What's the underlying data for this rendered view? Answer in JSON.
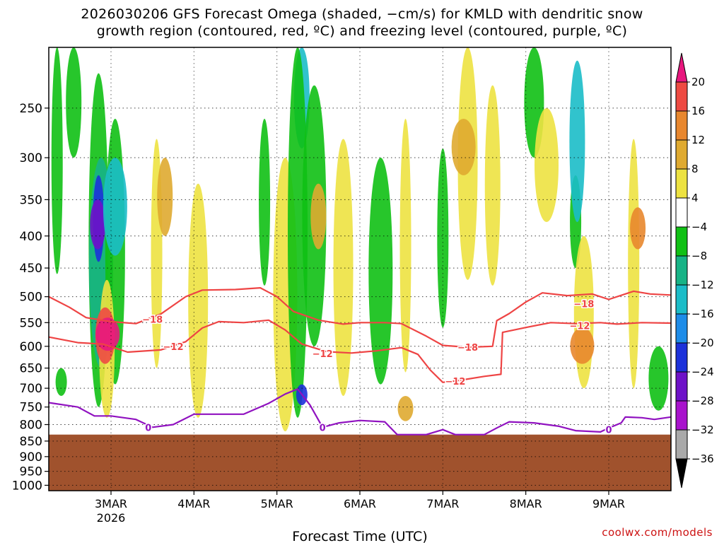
{
  "page": {
    "title_line1": "2026030206 GFS Forecast Omega (shaded, −cm/s) for KMLD with dendritic snow",
    "title_line2": "growth region (contoured, red, ºC) and freezing level (contoured, purple, ºC)",
    "credit": "coolwx.com/models"
  },
  "chart_data": {
    "type": "heatmap",
    "title": "2026030206 GFS Forecast Omega (shaded, −cm/s) for KMLD with dendritic snow growth region (contoured, red, ºC) and freezing level (contoured, purple, ºC)",
    "xlabel": "Forecast Time (UTC)",
    "ylabel": "",
    "x_range_days": [
      2.25,
      9.75
    ],
    "x_ticks": [
      {
        "label": "3MAR",
        "sub": "2026",
        "day": 3
      },
      {
        "label": "4MAR",
        "sub": "",
        "day": 4
      },
      {
        "label": "5MAR",
        "sub": "",
        "day": 5
      },
      {
        "label": "6MAR",
        "sub": "",
        "day": 6
      },
      {
        "label": "7MAR",
        "sub": "",
        "day": 7
      },
      {
        "label": "8MAR",
        "sub": "",
        "day": 8
      },
      {
        "label": "9MAR",
        "sub": "",
        "day": 9
      }
    ],
    "y_axis": {
      "scale": "log-pressure",
      "range_hpa": [
        200,
        1020
      ],
      "inverted": true,
      "ticks": [
        250,
        300,
        350,
        400,
        450,
        500,
        550,
        600,
        650,
        700,
        750,
        800,
        850,
        900,
        950,
        1000
      ]
    },
    "ground_level_hpa": 830,
    "ground_color": "#a0522d",
    "colorbar": {
      "bins": [
        {
          "lo": 20,
          "hi": 24,
          "color": "#e8177e"
        },
        {
          "lo": 16,
          "hi": 20,
          "color": "#ee4a42"
        },
        {
          "lo": 12,
          "hi": 16,
          "color": "#e8872e"
        },
        {
          "lo": 8,
          "hi": 12,
          "color": "#dfaa30"
        },
        {
          "lo": 4,
          "hi": 8,
          "color": "#ede241"
        },
        {
          "lo": -4,
          "hi": 4,
          "color": "#ffffff"
        },
        {
          "lo": -8,
          "hi": -4,
          "color": "#10c014"
        },
        {
          "lo": -12,
          "hi": -8,
          "color": "#17b386"
        },
        {
          "lo": -16,
          "hi": -12,
          "color": "#1bbcc8"
        },
        {
          "lo": -20,
          "hi": -16,
          "color": "#1d8ce8"
        },
        {
          "lo": -24,
          "hi": -20,
          "color": "#1c31da"
        },
        {
          "lo": -28,
          "hi": -24,
          "color": "#6e12c8"
        },
        {
          "lo": -32,
          "hi": -28,
          "color": "#a812cc"
        },
        {
          "lo": -36,
          "hi": -32,
          "color": "#a9a9a9"
        },
        {
          "lo": -40,
          "hi": -36,
          "color": "#000000"
        }
      ],
      "tick_labels": [
        "20",
        "16",
        "12",
        "8",
        "4",
        "−4",
        "−8",
        "−12",
        "−16",
        "−20",
        "−24",
        "−28",
        "−32",
        "−36"
      ]
    },
    "contours": [
      {
        "name": "-18C isotherm",
        "label": "−18",
        "color": "#ee4444",
        "label_at": [
          [
            3.5,
            543
          ],
          [
            7.3,
            602
          ],
          [
            8.7,
            513
          ]
        ],
        "points": [
          [
            2.25,
            500
          ],
          [
            2.5,
            520
          ],
          [
            2.7,
            540
          ],
          [
            3.0,
            548
          ],
          [
            3.3,
            552
          ],
          [
            3.6,
            533
          ],
          [
            3.9,
            500
          ],
          [
            4.1,
            488
          ],
          [
            4.5,
            487
          ],
          [
            4.8,
            484
          ],
          [
            5.0,
            500
          ],
          [
            5.2,
            528
          ],
          [
            5.5,
            545
          ],
          [
            5.8,
            553
          ],
          [
            6.0,
            550
          ],
          [
            6.3,
            550
          ],
          [
            6.5,
            552
          ],
          [
            6.8,
            578
          ],
          [
            7.0,
            598
          ],
          [
            7.3,
            602
          ],
          [
            7.6,
            600
          ],
          [
            7.65,
            546
          ],
          [
            7.8,
            532
          ],
          [
            8.0,
            510
          ],
          [
            8.2,
            493
          ],
          [
            8.5,
            498
          ],
          [
            8.8,
            495
          ],
          [
            9.0,
            505
          ],
          [
            9.3,
            490
          ],
          [
            9.5,
            495
          ],
          [
            9.75,
            497
          ]
        ]
      },
      {
        "name": "-12C isotherm",
        "label": "−12",
        "color": "#ee4444",
        "label_at": [
          [
            3.75,
            600
          ],
          [
            5.55,
            616
          ],
          [
            7.15,
            682
          ],
          [
            8.65,
            556
          ]
        ],
        "points": [
          [
            2.25,
            580
          ],
          [
            2.6,
            592
          ],
          [
            2.9,
            595
          ],
          [
            3.2,
            613
          ],
          [
            3.6,
            608
          ],
          [
            3.9,
            590
          ],
          [
            4.1,
            561
          ],
          [
            4.3,
            548
          ],
          [
            4.6,
            550
          ],
          [
            4.9,
            545
          ],
          [
            5.1,
            565
          ],
          [
            5.3,
            595
          ],
          [
            5.6,
            612
          ],
          [
            5.9,
            615
          ],
          [
            6.2,
            610
          ],
          [
            6.5,
            603
          ],
          [
            6.7,
            618
          ],
          [
            6.85,
            655
          ],
          [
            7.0,
            685
          ],
          [
            7.2,
            680
          ],
          [
            7.5,
            670
          ],
          [
            7.7,
            665
          ],
          [
            7.72,
            570
          ],
          [
            8.0,
            560
          ],
          [
            8.3,
            550
          ],
          [
            8.6,
            552
          ],
          [
            8.9,
            550
          ],
          [
            9.1,
            553
          ],
          [
            9.4,
            550
          ],
          [
            9.75,
            551
          ]
        ]
      },
      {
        "name": "freezing level (0C)",
        "label": "0",
        "color": "#9012c0",
        "label_at": [
          [
            3.45,
            808
          ],
          [
            5.55,
            808
          ],
          [
            9.0,
            815
          ]
        ],
        "points": [
          [
            2.25,
            738
          ],
          [
            2.6,
            750
          ],
          [
            2.8,
            775
          ],
          [
            3.0,
            775
          ],
          [
            3.3,
            785
          ],
          [
            3.5,
            808
          ],
          [
            3.75,
            800
          ],
          [
            4.0,
            770
          ],
          [
            4.3,
            770
          ],
          [
            4.6,
            770
          ],
          [
            4.9,
            740
          ],
          [
            5.1,
            715
          ],
          [
            5.25,
            702
          ],
          [
            5.4,
            745
          ],
          [
            5.55,
            808
          ],
          [
            5.75,
            795
          ],
          [
            6.0,
            788
          ],
          [
            6.3,
            792
          ],
          [
            6.45,
            830
          ],
          [
            6.8,
            830
          ],
          [
            7.0,
            815
          ],
          [
            7.15,
            830
          ],
          [
            7.5,
            830
          ],
          [
            7.65,
            810
          ],
          [
            7.8,
            792
          ],
          [
            8.1,
            795
          ],
          [
            8.4,
            805
          ],
          [
            8.6,
            818
          ],
          [
            8.9,
            822
          ],
          [
            9.0,
            810
          ],
          [
            9.15,
            795
          ],
          [
            9.2,
            778
          ],
          [
            9.4,
            780
          ],
          [
            9.55,
            785
          ],
          [
            9.75,
            778
          ]
        ]
      }
    ],
    "omega_features": [
      {
        "hex": "#10c014",
        "day": 2.35,
        "p": [
          200,
          460
        ]
      },
      {
        "hex": "#10c014",
        "day": 2.55,
        "p": [
          200,
          300
        ]
      },
      {
        "hex": "#10c014",
        "day": 2.85,
        "p": [
          220,
          750
        ]
      },
      {
        "hex": "#17b386",
        "day": 2.88,
        "p": [
          300,
          650
        ]
      },
      {
        "hex": "#1c31da",
        "day": 2.85,
        "p": [
          320,
          440
        ]
      },
      {
        "hex": "#6e12c8",
        "day": 2.84,
        "p": [
          350,
          420
        ]
      },
      {
        "hex": "#10c014",
        "day": 3.05,
        "p": [
          260,
          690
        ]
      },
      {
        "hex": "#1bbcc8",
        "day": 3.05,
        "p": [
          300,
          430
        ]
      },
      {
        "hex": "#10c014",
        "day": 2.4,
        "p": [
          650,
          720
        ]
      },
      {
        "hex": "#ede241",
        "day": 2.95,
        "p": [
          470,
          780
        ]
      },
      {
        "hex": "#ee4a42",
        "day": 2.93,
        "p": [
          520,
          640
        ]
      },
      {
        "hex": "#e8177e",
        "day": 2.96,
        "p": [
          540,
          610
        ]
      },
      {
        "hex": "#ede241",
        "day": 3.55,
        "p": [
          280,
          650
        ]
      },
      {
        "hex": "#dfaa30",
        "day": 3.65,
        "p": [
          300,
          400
        ]
      },
      {
        "hex": "#ede241",
        "day": 4.05,
        "p": [
          330,
          780
        ]
      },
      {
        "hex": "#ede241",
        "day": 5.1,
        "p": [
          300,
          820
        ]
      },
      {
        "hex": "#10c014",
        "day": 4.85,
        "p": [
          260,
          480
        ]
      },
      {
        "hex": "#1bbcc8",
        "day": 5.3,
        "p": [
          200,
          290
        ]
      },
      {
        "hex": "#10c014",
        "day": 5.25,
        "p": [
          200,
          780
        ]
      },
      {
        "hex": "#10c014",
        "day": 5.45,
        "p": [
          230,
          600
        ]
      },
      {
        "hex": "#1c31da",
        "day": 5.3,
        "p": [
          690,
          745
        ]
      },
      {
        "hex": "#dfaa30",
        "day": 5.5,
        "p": [
          330,
          420
        ]
      },
      {
        "hex": "#ede241",
        "day": 5.8,
        "p": [
          280,
          720
        ]
      },
      {
        "hex": "#10c014",
        "day": 6.25,
        "p": [
          300,
          690
        ]
      },
      {
        "hex": "#ede241",
        "day": 6.55,
        "p": [
          260,
          660
        ]
      },
      {
        "hex": "#dfaa30",
        "day": 6.55,
        "p": [
          720,
          790
        ]
      },
      {
        "hex": "#ede241",
        "day": 7.3,
        "p": [
          200,
          470
        ]
      },
      {
        "hex": "#dfaa30",
        "day": 7.25,
        "p": [
          260,
          320
        ]
      },
      {
        "hex": "#10c014",
        "day": 7.0,
        "p": [
          290,
          560
        ]
      },
      {
        "hex": "#ede241",
        "day": 7.6,
        "p": [
          230,
          480
        ]
      },
      {
        "hex": "#10c014",
        "day": 8.1,
        "p": [
          200,
          300
        ]
      },
      {
        "hex": "#ede241",
        "day": 8.25,
        "p": [
          250,
          380
        ]
      },
      {
        "hex": "#10c014",
        "day": 8.6,
        "p": [
          320,
          450
        ]
      },
      {
        "hex": "#1bbcc8",
        "day": 8.62,
        "p": [
          210,
          380
        ]
      },
      {
        "hex": "#ede241",
        "day": 8.7,
        "p": [
          400,
          700
        ]
      },
      {
        "hex": "#e8872e",
        "day": 8.68,
        "p": [
          560,
          640
        ]
      },
      {
        "hex": "#ede241",
        "day": 9.3,
        "p": [
          280,
          700
        ]
      },
      {
        "hex": "#e8872e",
        "day": 9.35,
        "p": [
          360,
          420
        ]
      },
      {
        "hex": "#10c014",
        "day": 9.6,
        "p": [
          600,
          760
        ]
      }
    ]
  }
}
